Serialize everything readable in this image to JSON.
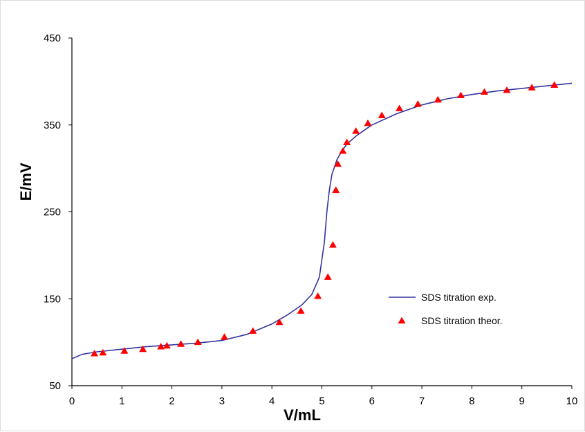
{
  "chart_data": {
    "type": "scatter",
    "title": "",
    "xlabel": "V/mL",
    "ylabel": "E/mV",
    "xlim": [
      0,
      10
    ],
    "ylim": [
      50,
      450
    ],
    "x_ticks": [
      "0",
      "1",
      "2",
      "3",
      "4",
      "5",
      "6",
      "7",
      "8",
      "9",
      "10"
    ],
    "y_ticks": [
      "50",
      "150",
      "250",
      "350",
      "450"
    ],
    "grid": false,
    "legend_position": "right",
    "series": [
      {
        "name": "SDS titration exp.",
        "kind": "line",
        "color": "#3333a0",
        "x": [
          0,
          0.2,
          0.5,
          1.0,
          1.5,
          2.0,
          2.5,
          3.0,
          3.5,
          4.0,
          4.3,
          4.6,
          4.8,
          4.95,
          5.05,
          5.1,
          5.15,
          5.2,
          5.3,
          5.4,
          5.5,
          5.7,
          6.0,
          6.5,
          7.0,
          7.5,
          8.0,
          8.5,
          9.0,
          9.5,
          10.0
        ],
        "y": [
          81,
          86,
          89,
          92,
          95,
          97,
          99,
          102,
          109,
          121,
          131,
          143,
          155,
          175,
          215,
          250,
          275,
          293,
          310,
          320,
          328,
          338,
          350,
          363,
          373,
          380,
          385,
          389,
          392,
          395,
          398
        ]
      },
      {
        "name": "SDS titration theor.",
        "kind": "marker",
        "marker": "triangle",
        "color": "#ff0000",
        "x": [
          0.45,
          0.62,
          1.05,
          1.42,
          1.78,
          1.9,
          2.18,
          2.52,
          3.05,
          3.62,
          4.15,
          4.58,
          4.92,
          5.12,
          5.22,
          5.28,
          5.32,
          5.42,
          5.5,
          5.68,
          5.92,
          6.2,
          6.55,
          6.92,
          7.32,
          7.78,
          8.25,
          8.7,
          9.2,
          9.65
        ],
        "y": [
          87,
          88,
          90,
          92,
          95,
          96,
          98,
          100,
          106,
          113,
          123,
          136,
          153,
          175,
          212,
          275,
          305,
          320,
          330,
          343,
          352,
          361,
          369,
          374,
          379,
          384,
          388,
          390,
          393,
          396
        ]
      }
    ]
  }
}
